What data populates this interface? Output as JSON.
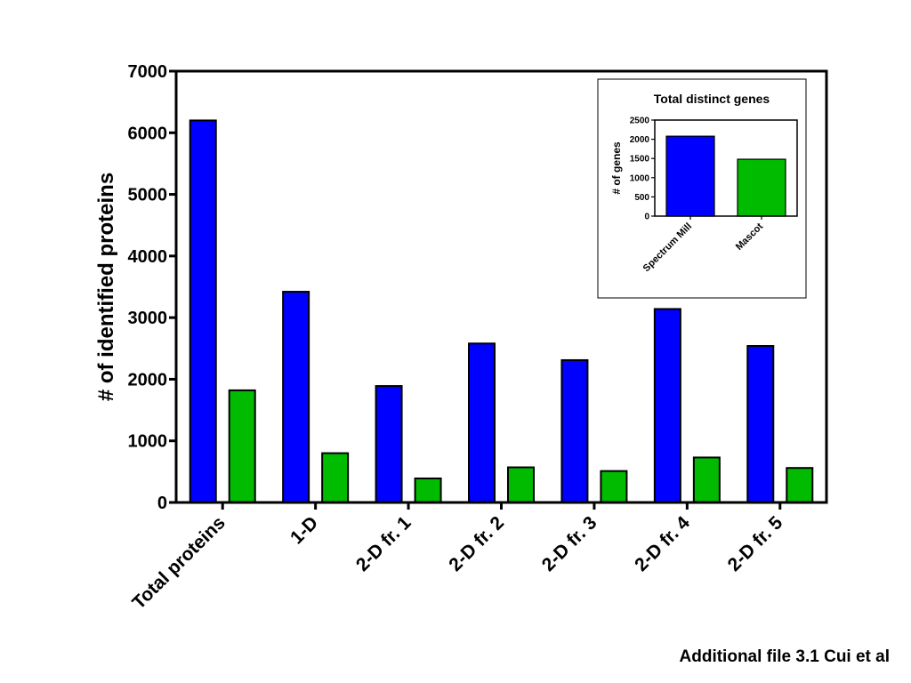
{
  "footer_caption": "Additional file 3.1 Cui et al",
  "colors": {
    "series_a": "#0000ff",
    "series_b": "#00bb00",
    "axis": "#000000"
  },
  "chart_data": [
    {
      "type": "bar",
      "title": "",
      "xlabel": "",
      "ylabel": "# of identified proteins",
      "ylim": [
        0,
        7000
      ],
      "yticks": [
        0,
        1000,
        2000,
        3000,
        4000,
        5000,
        6000,
        7000
      ],
      "grid": false,
      "categories": [
        "Total proteins",
        "1-D",
        "2-D fr. 1",
        "2-D fr. 2",
        "2-D fr. 3",
        "2-D fr. 4",
        "2-D fr. 5"
      ],
      "series": [
        {
          "values": [
            6200,
            3420,
            1890,
            2580,
            2310,
            3140,
            2540
          ]
        },
        {
          "values": [
            1820,
            800,
            390,
            570,
            510,
            730,
            560
          ]
        }
      ]
    },
    {
      "type": "bar",
      "title": "Total distinct genes",
      "xlabel": "",
      "ylabel": "# of genes",
      "ylim": [
        0,
        2500
      ],
      "yticks": [
        0,
        500,
        1000,
        1500,
        2000,
        2500
      ],
      "grid": false,
      "categories": [
        "Spectrum Mill",
        "Mascot"
      ],
      "values": [
        2080,
        1480
      ]
    }
  ]
}
